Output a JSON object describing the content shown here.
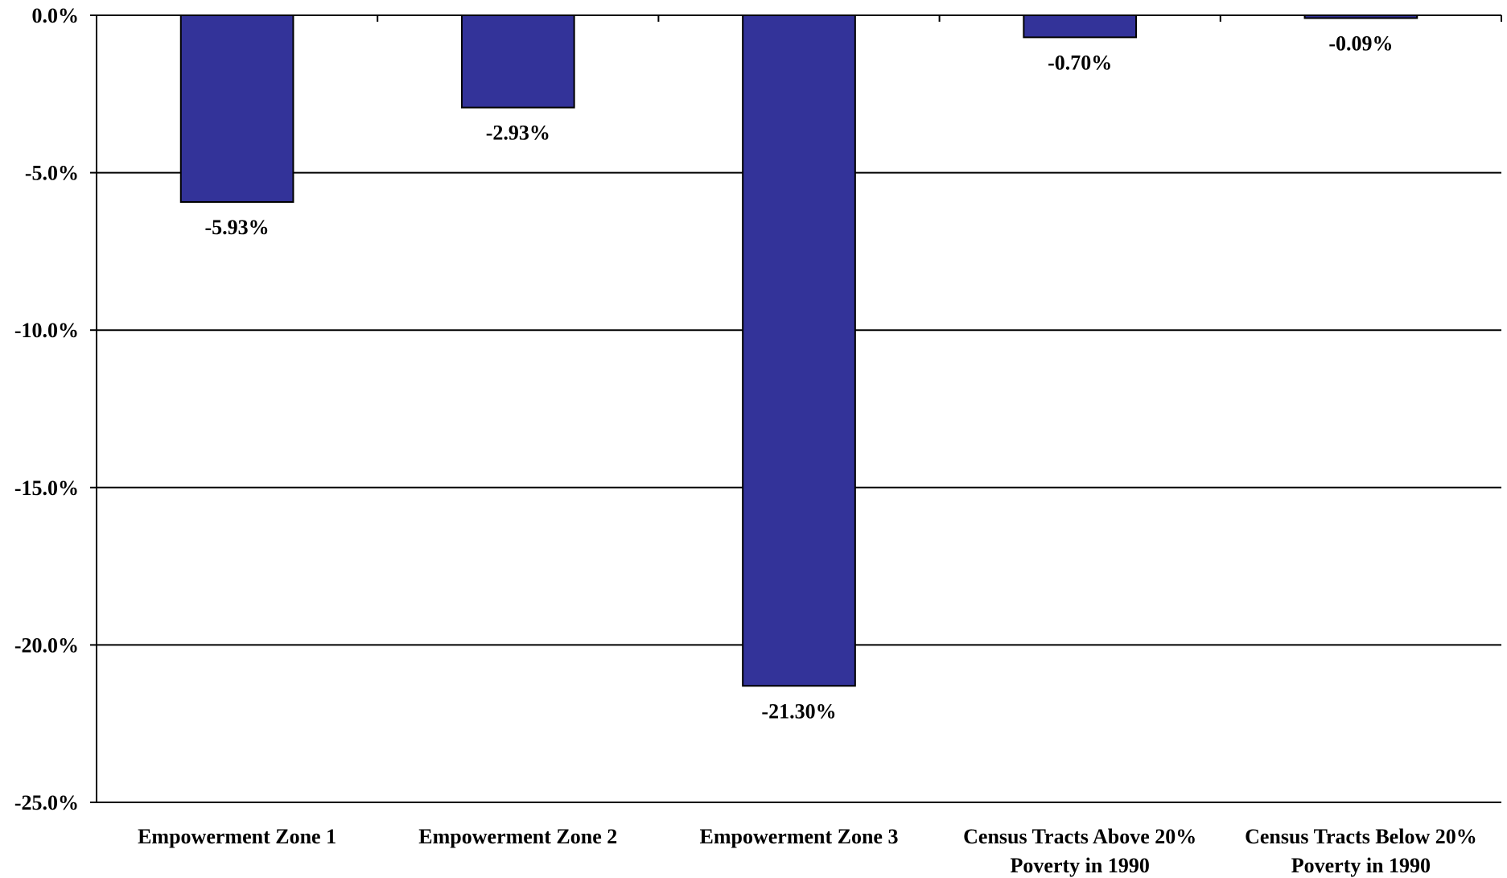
{
  "chart_data": {
    "type": "bar",
    "title": "",
    "xlabel": "",
    "ylabel": "",
    "categories": [
      [
        "Empowerment Zone 1"
      ],
      [
        "Empowerment Zone 2"
      ],
      [
        "Empowerment Zone 3"
      ],
      [
        "Census Tracts Above 20%",
        "Poverty in 1990"
      ],
      [
        "Census Tracts Below 20%",
        "Poverty in 1990"
      ]
    ],
    "values": [
      -5.93,
      -2.93,
      -21.3,
      -0.7,
      -0.09
    ],
    "data_labels": [
      "-5.93%",
      "-2.93%",
      "-21.30%",
      "-0.70%",
      "-0.09%"
    ],
    "ylim": [
      -25.0,
      0.0
    ],
    "y_ticks": [
      0.0,
      -5.0,
      -10.0,
      -15.0,
      -20.0,
      -25.0
    ],
    "y_tick_labels": [
      "0.0%",
      "-5.0%",
      "-10.0%",
      "-15.0%",
      "-20.0%",
      "-25.0%"
    ],
    "grid": true,
    "legend": "none",
    "colors": {
      "bar": "#333399",
      "bar_edge": "#000000",
      "grid": "#000000"
    }
  }
}
